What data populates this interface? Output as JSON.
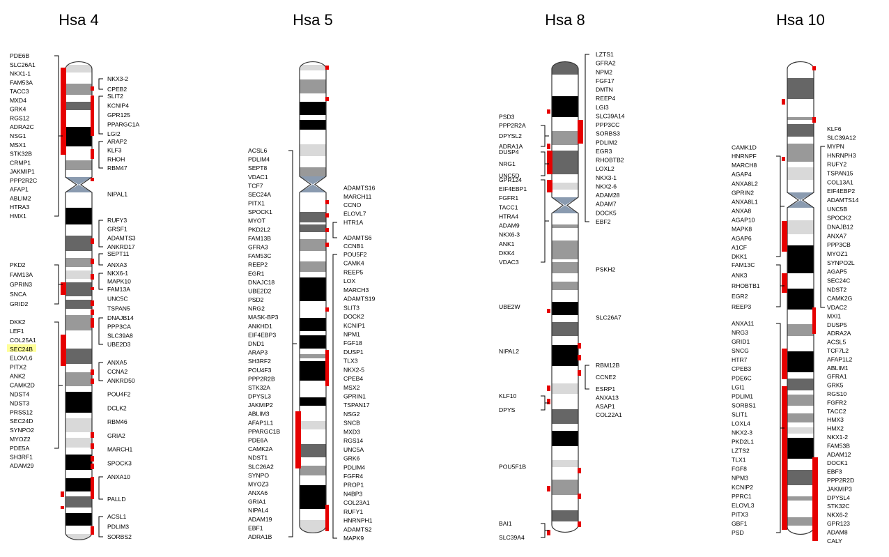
{
  "chart_data": {
    "type": "ideogram",
    "colors": {
      "band_black": "#000000",
      "band_dark": "#666666",
      "band_mid": "#999999",
      "band_light": "#d9d9d9",
      "centromere": "#8a9bb0",
      "marker": "#e60000",
      "highlight": "#ffff99"
    },
    "chromosomes": [
      {
        "name": "Hsa 4",
        "genes_left": [
          "PDE6B",
          "SLC26A1",
          "NKX1-1",
          "FAM53A",
          "TACC3",
          "MXD4",
          "GRK4",
          "RGS12",
          "ADRA2C",
          "NSG1",
          "MSX1",
          "STK32B",
          "CRMP1",
          "JAKMIP1",
          "PPP2R2C",
          "AFAP1",
          "ABLIM2",
          "HTRA3",
          "HMX1",
          "PKD2",
          "FAM13A",
          "GPRIN3",
          "SNCA",
          "GRID2",
          "DKK2",
          "LEF1",
          "COL25A1",
          "SEC24B",
          "ELOVL6",
          "PITX2",
          "ANK2",
          "CAMK2D",
          "NDST4",
          "NDST3",
          "PRSS12",
          "SEC24D",
          "SYNPO2",
          "MYOZ2",
          "PDE5A",
          "SH3RF1",
          "ADAM29"
        ],
        "genes_right": [
          "NKX3-2",
          "CPEB2",
          "SLIT2",
          "KCNIP4",
          "GPR125",
          "PPARGC1A",
          "LGI2",
          "ARAP2",
          "KLF3",
          "RHOH",
          "RBM47",
          "NIPAL1",
          "RUFY3",
          "GRSF1",
          "ADAMTS3",
          "ANKRD17",
          "SEPT11",
          "ANXA3",
          "NKX6-1",
          "MAPK10",
          "FAM13A",
          "UNC5C",
          "TSPAN5",
          "DNAJB14",
          "PPP3CA",
          "SLC39A8",
          "UBE2D3",
          "ANXA5",
          "CCNA2",
          "ANKRD50",
          "POU4F2",
          "DCLK2",
          "RBM46",
          "GRIA2",
          "MARCH1",
          "SPOCK3",
          "ANXA10",
          "PALLD",
          "ACSL1",
          "PDLIM3",
          "SORBS2"
        ],
        "highlighted_gene": "SEC24B"
      },
      {
        "name": "Hsa 5",
        "genes_left": [
          "ACSL6",
          "PDLIM4",
          "SEPT8",
          "VDAC1",
          "TCF7",
          "SEC24A",
          "PITX1",
          "SPOCK1",
          "MYOT",
          "PKD2L2",
          "FAM13B",
          "GFRA3",
          "FAM53C",
          "REEP2",
          "EGR1",
          "DNAJC18",
          "UBE2D2",
          "PSD2",
          "NRG2",
          "MASK-BP3",
          "ANKHD1",
          "EIF4EBP3",
          "DND1",
          "ARAP3",
          "SH3RF2",
          "POU4F3",
          "PPP2R2B",
          "STK32A",
          "DPYSL3",
          "JAKMIP2",
          "ABLIM3",
          "AFAP1L1",
          "PPARGC1B",
          "PDE6A",
          "CAMK2A",
          "NDST1",
          "SLC26A2",
          "SYNPO",
          "MYOZ3",
          "ANXA6",
          "GRIA1",
          "NIPAL4",
          "ADAM19",
          "EBF1",
          "ADRA1B"
        ],
        "genes_right": [
          "ADAMTS16",
          "MARCH11",
          "CCNO",
          "ELOVL7",
          "HTR1A",
          "ADAMTS6",
          "CCNB1",
          "POU5F2",
          "CAMK4",
          "REEP5",
          "LOX",
          "MARCH3",
          "ADAMTS19",
          "SLIT3",
          "DOCK2",
          "KCNIP1",
          "NPM1",
          "FGF18",
          "DUSP1",
          "TLX3",
          "NKX2-5",
          "CPEB4",
          "MSX2",
          "GPRIN1",
          "TSPAN17",
          "NSG2",
          "SNCB",
          "MXD3",
          "RGS14",
          "UNC5A",
          "GRK6",
          "PDLIM4",
          "FGFR4",
          "PROP1",
          "N4BP3",
          "COL23A1",
          "RUFY1",
          "HNRNPH1",
          "ADAMTS2",
          "MAPK9"
        ]
      },
      {
        "name": "Hsa 8",
        "genes_left": [
          "PSD3",
          "PPP2R2A",
          "DPYSL2",
          "ADRA1A",
          "DUSP4",
          "NRG1",
          "UNC5D",
          "GPR124",
          "EIF4EBP1",
          "FGFR1",
          "TACC1",
          "HTRA4",
          "ADAM9",
          "NKX6-3",
          "ANK1",
          "DKK4",
          "VDAC3",
          "UBE2W",
          "NIPAL2",
          "KLF10",
          "DPYS",
          "POU5F1B",
          "BAI1",
          "SLC39A4"
        ],
        "genes_right": [
          "LZTS1",
          "GFRA2",
          "NPM2",
          "FGF17",
          "DMTN",
          "REEP4",
          "LGI3",
          "SLC39A14",
          "PPP3CC",
          "SORBS3",
          "PDLIM2",
          "EGR3",
          "RHOBTB2",
          "LOXL2",
          "NKX3-1",
          "NKX2-6",
          "ADAM28",
          "ADAM7",
          "DOCK5",
          "EBF2",
          "PSKH2",
          "SLC26A7",
          "RBM12B",
          "CCNE2",
          "ESRP1",
          "ANXA13",
          "ASAP1",
          "COL22A1"
        ]
      },
      {
        "name": "Hsa 10",
        "genes_left": [
          "CAMK1D",
          "HNRNPF",
          "MARCH8",
          "AGAP4",
          "ANXA8L2",
          "GPRIN2",
          "ANXA8L1",
          "ANXA8",
          "AGAP10",
          "MAPK8",
          "AGAP6",
          "A1CF",
          "DKK1",
          "FAM13C",
          "ANK3",
          "RHOBTB1",
          "EGR2",
          "REEP3",
          "ANXA11",
          "NRG3",
          "GRID1",
          "SNCG",
          "HTR7",
          "CPEB3",
          "PDE6C",
          "LGI1",
          "PDLIM1",
          "SORBS1",
          "SLIT1",
          "LOXL4",
          "NKX2-3",
          "PKD2L1",
          "LZTS2",
          "TLX1",
          "FGF8",
          "NPM3",
          "KCNIP2",
          "PPRC1",
          "ELOVL3",
          "PITX3",
          "GBF1",
          "PSD"
        ],
        "genes_right": [
          "KLF6",
          "SLC39A12",
          "MYPN",
          "HNRNPH3",
          "RUFY2",
          "TSPAN15",
          "COL13A1",
          "EIF4EBP2",
          "ADAMTS14",
          "UNC5B",
          "SPOCK2",
          "DNAJB12",
          "ANXA7",
          "PPP3CB",
          "MYOZ1",
          "SYNPO2L",
          "AGAP5",
          "SEC24C",
          "NDST2",
          "CAMK2G",
          "VDAC2",
          "MXI1",
          "DUSP5",
          "ADRA2A",
          "ACSL5",
          "TCF7L2",
          "AFAP1L2",
          "ABLIM1",
          "GFRA1",
          "GRK5",
          "RGS10",
          "FGFR2",
          "TACC2",
          "HMX3",
          "HMX2",
          "NKX1-2",
          "FAM53B",
          "ADAM12",
          "DOCK1",
          "EBF3",
          "PPP2R2D",
          "JAKMIP3",
          "DPYSL4",
          "STK32C",
          "NKX6-2",
          "GPR123",
          "ADAM8",
          "CALY"
        ]
      }
    ]
  }
}
